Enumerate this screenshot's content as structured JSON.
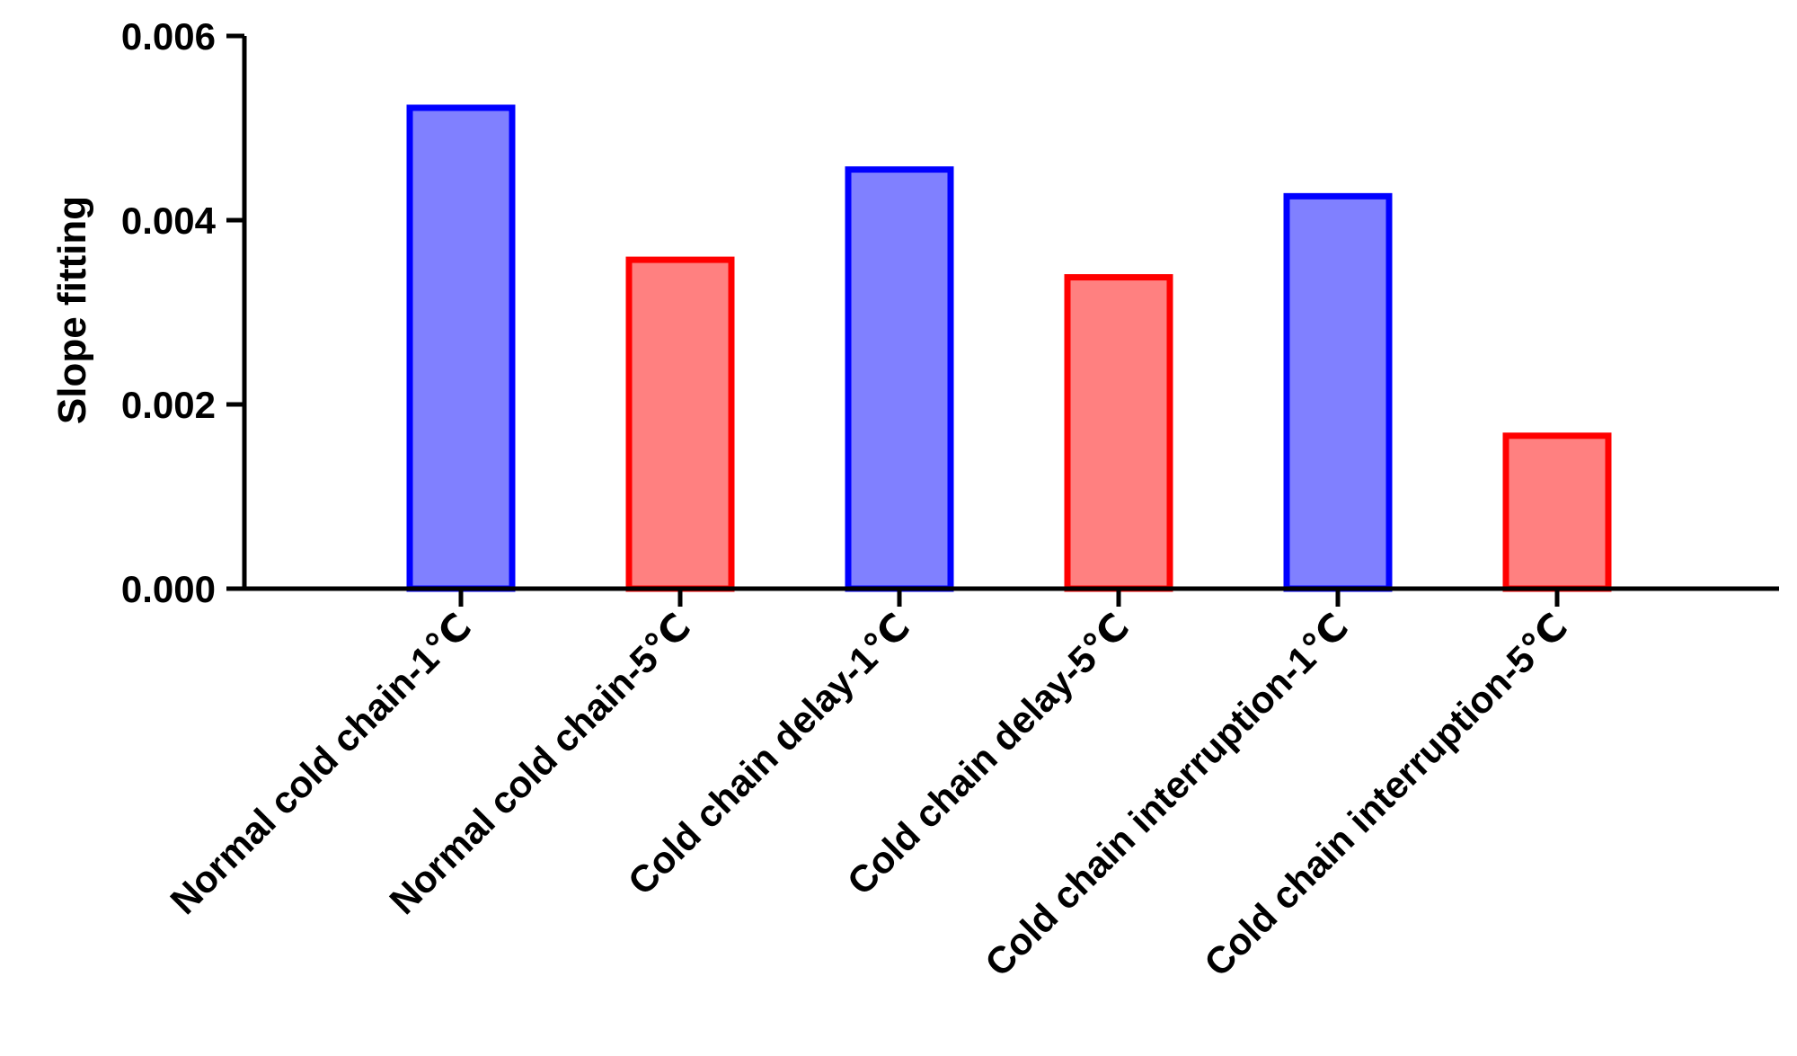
{
  "chart_data": {
    "type": "bar",
    "title": "",
    "xlabel": "",
    "ylabel": "Slope fitting",
    "ylim": [
      0,
      0.006
    ],
    "y_ticks": [
      "0.000",
      "0.002",
      "0.004",
      "0.006"
    ],
    "grid": false,
    "categories": [
      "Normal cold chain-1℃",
      "Normal cold chain-5℃",
      "Cold chain delay-1℃",
      "Cold chain delay-5℃",
      "Cold chain interruption-1℃",
      "Cold chain interruption-5℃"
    ],
    "values": [
      0.00522,
      0.00357,
      0.00455,
      0.00338,
      0.00426,
      0.00166
    ],
    "bar_fill_colors": [
      "#8080ff",
      "#ff8080",
      "#8080ff",
      "#ff8080",
      "#8080ff",
      "#ff8080"
    ],
    "bar_edge_colors": [
      "#0000ff",
      "#ff0000",
      "#0000ff",
      "#ff0000",
      "#0000ff",
      "#ff0000"
    ]
  }
}
